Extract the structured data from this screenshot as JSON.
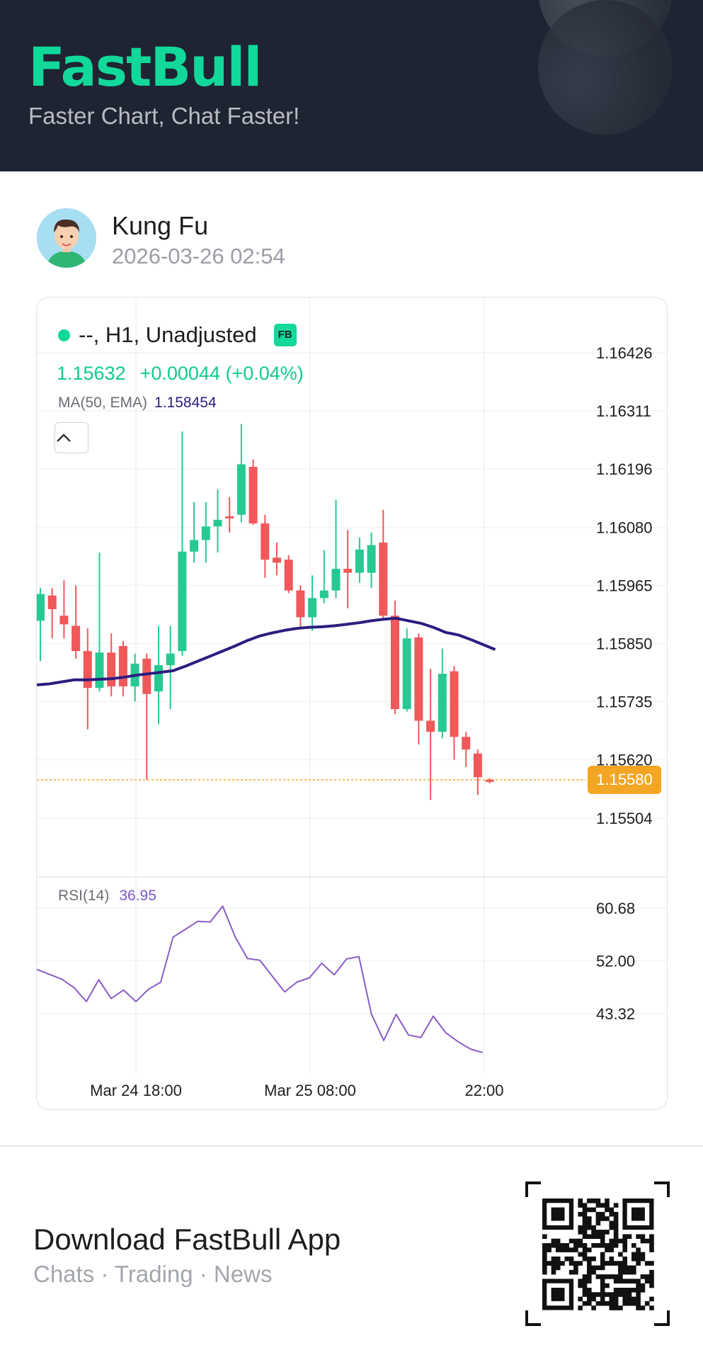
{
  "header": {
    "brand": "FastBull",
    "tagline": "Faster Chart, Chat Faster!"
  },
  "user": {
    "name": "Kung Fu",
    "time": "2026-03-26 02:54"
  },
  "chart_header": {
    "title": "--, H1, Unadjusted",
    "badge": "FB",
    "last": "1.15632",
    "change": "+0.00044 (+0.04%)",
    "ma_label": "MA(50, EMA)",
    "ma_value": "1.158454",
    "rsi_label": "RSI(14)",
    "rsi_value": "36.95",
    "current_price": "1.15580",
    "collapse_icon": "chevron-up-icon"
  },
  "chart_data": {
    "type": "candlestick",
    "price_ticks": [
      "1.16426",
      "1.16311",
      "1.16196",
      "1.16080",
      "1.15965",
      "1.15850",
      "1.15735",
      "1.15620",
      "1.15504"
    ],
    "rsi_ticks": [
      "60.68",
      "52.00",
      "43.32"
    ],
    "time_ticks": [
      "Mar 24 18:00",
      "Mar 25 08:00",
      "22:00"
    ],
    "price_range": [
      1.15504,
      1.16426
    ],
    "rsi_range": [
      43.32,
      60.68
    ],
    "candles": [
      {
        "o": 1.15895,
        "c": 1.15948,
        "h": 1.1596,
        "l": 1.15815
      },
      {
        "o": 1.15945,
        "c": 1.15918,
        "h": 1.1596,
        "l": 1.1586
      },
      {
        "o": 1.15905,
        "c": 1.15888,
        "h": 1.15975,
        "l": 1.1586
      },
      {
        "o": 1.15885,
        "c": 1.15835,
        "h": 1.15965,
        "l": 1.1582
      },
      {
        "o": 1.15835,
        "c": 1.15762,
        "h": 1.1588,
        "l": 1.1568
      },
      {
        "o": 1.15762,
        "c": 1.15832,
        "h": 1.1603,
        "l": 1.15755
      },
      {
        "o": 1.15832,
        "c": 1.15765,
        "h": 1.1587,
        "l": 1.15745
      },
      {
        "o": 1.15845,
        "c": 1.15765,
        "h": 1.15855,
        "l": 1.15745
      },
      {
        "o": 1.15765,
        "c": 1.1581,
        "h": 1.1583,
        "l": 1.15735
      },
      {
        "o": 1.1582,
        "c": 1.1575,
        "h": 1.1583,
        "l": 1.1558
      },
      {
        "o": 1.15755,
        "c": 1.15807,
        "h": 1.15885,
        "l": 1.1569
      },
      {
        "o": 1.15807,
        "c": 1.1583,
        "h": 1.15885,
        "l": 1.1572
      },
      {
        "o": 1.15835,
        "c": 1.16032,
        "h": 1.1627,
        "l": 1.15825
      },
      {
        "o": 1.16032,
        "c": 1.16055,
        "h": 1.1613,
        "l": 1.1601
      },
      {
        "o": 1.16055,
        "c": 1.16082,
        "h": 1.1613,
        "l": 1.1601
      },
      {
        "o": 1.16082,
        "c": 1.16095,
        "h": 1.16155,
        "l": 1.1603
      },
      {
        "o": 1.16102,
        "c": 1.16098,
        "h": 1.1614,
        "l": 1.1607
      },
      {
        "o": 1.16105,
        "c": 1.16205,
        "h": 1.16285,
        "l": 1.1609
      },
      {
        "o": 1.162,
        "c": 1.16088,
        "h": 1.16215,
        "l": 1.16085
      },
      {
        "o": 1.16088,
        "c": 1.16016,
        "h": 1.16105,
        "l": 1.1598
      },
      {
        "o": 1.1602,
        "c": 1.1601,
        "h": 1.1605,
        "l": 1.15985
      },
      {
        "o": 1.16016,
        "c": 1.15955,
        "h": 1.16025,
        "l": 1.1595
      },
      {
        "o": 1.15955,
        "c": 1.15902,
        "h": 1.15965,
        "l": 1.1588
      },
      {
        "o": 1.15902,
        "c": 1.1594,
        "h": 1.15985,
        "l": 1.15875
      },
      {
        "o": 1.1594,
        "c": 1.15955,
        "h": 1.16035,
        "l": 1.1593
      },
      {
        "o": 1.15955,
        "c": 1.15998,
        "h": 1.16135,
        "l": 1.1594
      },
      {
        "o": 1.15998,
        "c": 1.1599,
        "h": 1.16075,
        "l": 1.1592
      },
      {
        "o": 1.1599,
        "c": 1.16036,
        "h": 1.1606,
        "l": 1.1597
      },
      {
        "o": 1.1599,
        "c": 1.16045,
        "h": 1.1607,
        "l": 1.1596
      },
      {
        "o": 1.1605,
        "c": 1.15905,
        "h": 1.16115,
        "l": 1.15895
      },
      {
        "o": 1.15905,
        "c": 1.1572,
        "h": 1.15935,
        "l": 1.1571
      },
      {
        "o": 1.1572,
        "c": 1.1586,
        "h": 1.1588,
        "l": 1.15715
      },
      {
        "o": 1.15862,
        "c": 1.15697,
        "h": 1.1587,
        "l": 1.1565
      },
      {
        "o": 1.15697,
        "c": 1.15675,
        "h": 1.158,
        "l": 1.1554
      },
      {
        "o": 1.15675,
        "c": 1.1579,
        "h": 1.1584,
        "l": 1.15662
      },
      {
        "o": 1.15795,
        "c": 1.15665,
        "h": 1.15805,
        "l": 1.1562
      },
      {
        "o": 1.15665,
        "c": 1.1564,
        "h": 1.15675,
        "l": 1.15605
      },
      {
        "o": 1.15632,
        "c": 1.15585,
        "h": 1.1564,
        "l": 1.1555
      },
      {
        "o": 1.1558,
        "c": 1.15576,
        "h": 1.15583,
        "l": 1.15573
      }
    ],
    "ma_points": [
      1.15768,
      1.1577,
      1.15774,
      1.15778,
      1.15778,
      1.15779,
      1.1578,
      1.15783,
      1.15787,
      1.1579,
      1.15793,
      1.15796,
      1.15805,
      1.15815,
      1.15825,
      1.15835,
      1.15845,
      1.15856,
      1.15865,
      1.15871,
      1.15876,
      1.1588,
      1.15882,
      1.15883,
      1.15885,
      1.15888,
      1.15891,
      1.15895,
      1.15898,
      1.159,
      1.15895,
      1.1589,
      1.15882,
      1.15872,
      1.15867,
      1.15858,
      1.15848,
      1.15838
    ],
    "rsi_points": [
      50.6,
      49.8,
      49.0,
      47.6,
      45.3,
      48.9,
      45.8,
      47.2,
      45.3,
      47.3,
      48.5,
      55.9,
      57.2,
      58.5,
      58.4,
      61.0,
      56.0,
      52.4,
      52.1,
      49.5,
      46.9,
      48.5,
      49.2,
      51.6,
      49.7,
      52.3,
      52.7,
      43.3,
      38.9,
      43.2,
      39.8,
      39.4,
      42.9,
      40.2,
      38.7,
      37.5,
      36.9
    ],
    "grid": true
  },
  "footer": {
    "download_title": "Download FastBull App",
    "subtitle": "Chats · Trading · News"
  },
  "colors": {
    "up": "#26c993",
    "down": "#f0585a",
    "ma": "#2b1d80",
    "rsi": "#8a5cc6",
    "current": "#f3a623",
    "brand": "#12d89a"
  }
}
